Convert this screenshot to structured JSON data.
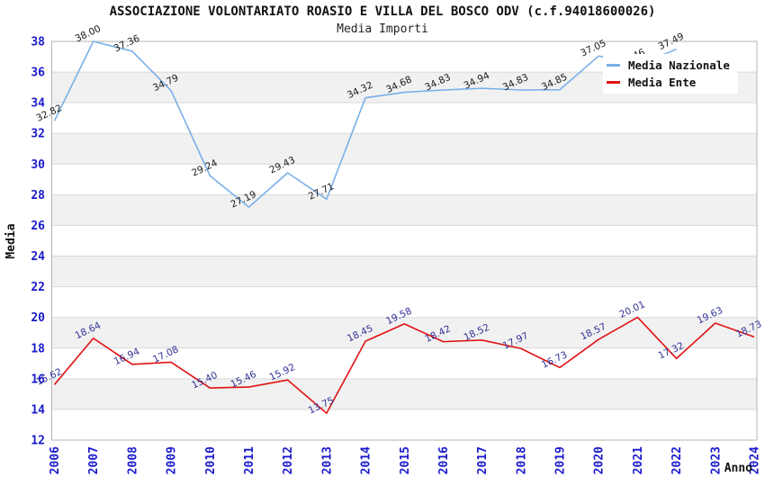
{
  "title": "ASSOCIAZIONE VOLONTARIATO ROASIO E VILLA DEL BOSCO ODV (c.f.94018600026)",
  "subtitle": "Media Importi",
  "colors": {
    "tick_label": "#1a1acc",
    "axis_title": "#111111",
    "stripe": "#f1f1f1",
    "gridline": "#d9d9d9",
    "plot_border": "#b5b5b5",
    "legend_bg": "#ffffff"
  },
  "legend": {
    "items": [
      {
        "label": "Media Nazionale",
        "color": "#79b0e8"
      },
      {
        "label": "Media Ente",
        "color": "#e01212"
      }
    ]
  },
  "chart_data": {
    "type": "line",
    "title": "ASSOCIAZIONE VOLONTARIATO ROASIO E VILLA DEL BOSCO ODV (c.f.94018600026)",
    "subtitle": "Media Importi",
    "xlabel": "Anno",
    "ylabel": "Media",
    "ylim": [
      12,
      38
    ],
    "ytick_step": 2,
    "grid": "striped-horizontal",
    "legend_position": "top-right",
    "categories": [
      "2006",
      "2007",
      "2008",
      "2009",
      "2010",
      "2011",
      "2012",
      "2013",
      "2014",
      "2015",
      "2016",
      "2017",
      "2018",
      "2019",
      "2020",
      "2021",
      "2022",
      "2023",
      "2024"
    ],
    "series": [
      {
        "name": "Media Nazionale",
        "color": "#79b0e8",
        "label_color": "#1a1a1a",
        "values": [
          32.82,
          38.0,
          37.36,
          34.79,
          29.24,
          27.19,
          29.43,
          27.71,
          34.32,
          34.68,
          34.83,
          34.94,
          34.83,
          34.85,
          37.05,
          36.46,
          37.49,
          null,
          null
        ]
      },
      {
        "name": "Media Ente",
        "color": "#e01212",
        "label_color": "#333399",
        "values": [
          15.62,
          18.64,
          16.94,
          17.08,
          15.4,
          15.46,
          15.92,
          13.75,
          18.45,
          19.58,
          18.42,
          18.52,
          17.97,
          16.73,
          18.57,
          20.01,
          17.32,
          19.63,
          18.73
        ]
      }
    ]
  }
}
